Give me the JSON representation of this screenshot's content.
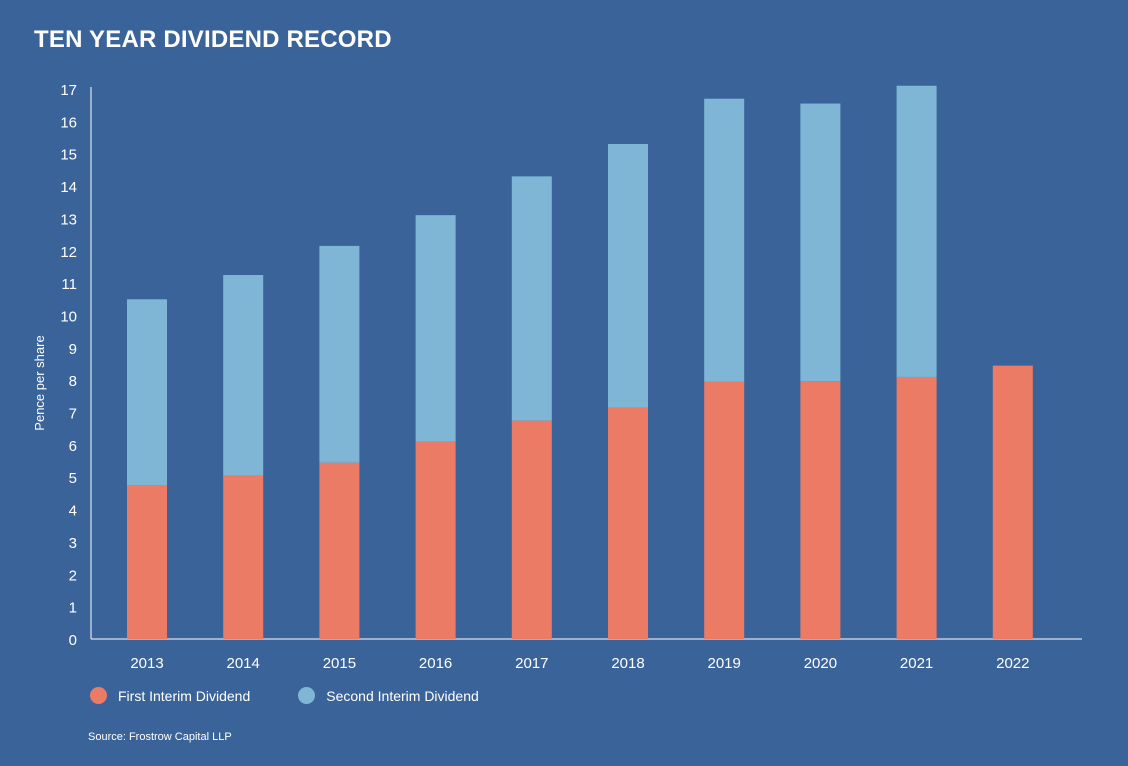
{
  "chart_data": {
    "type": "bar",
    "stacked": true,
    "title": "TEN YEAR DIVIDEND RECORD",
    "xlabel": "",
    "ylabel": "Pence per share",
    "ylim": [
      0,
      17
    ],
    "yticks": [
      0,
      1,
      2,
      3,
      4,
      5,
      6,
      7,
      8,
      9,
      10,
      11,
      12,
      13,
      14,
      15,
      16,
      17
    ],
    "categories": [
      "2013",
      "2014",
      "2015",
      "2016",
      "2017",
      "2018",
      "2019",
      "2020",
      "2021",
      "2022"
    ],
    "series": [
      {
        "name": "First Interim Dividend",
        "color": "#ec7b66",
        "values": [
          4.75,
          5.05,
          5.45,
          6.1,
          6.75,
          7.15,
          7.95,
          7.97,
          8.1,
          8.45
        ]
      },
      {
        "name": "Second Interim Dividend",
        "color": "#7fb6d5",
        "values": [
          5.75,
          6.2,
          6.7,
          7.0,
          7.55,
          8.15,
          8.75,
          8.58,
          9.0,
          0
        ]
      }
    ],
    "grid": false,
    "legend_position": "bottom-left",
    "source": "Source: Frostrow Capital LLP"
  }
}
